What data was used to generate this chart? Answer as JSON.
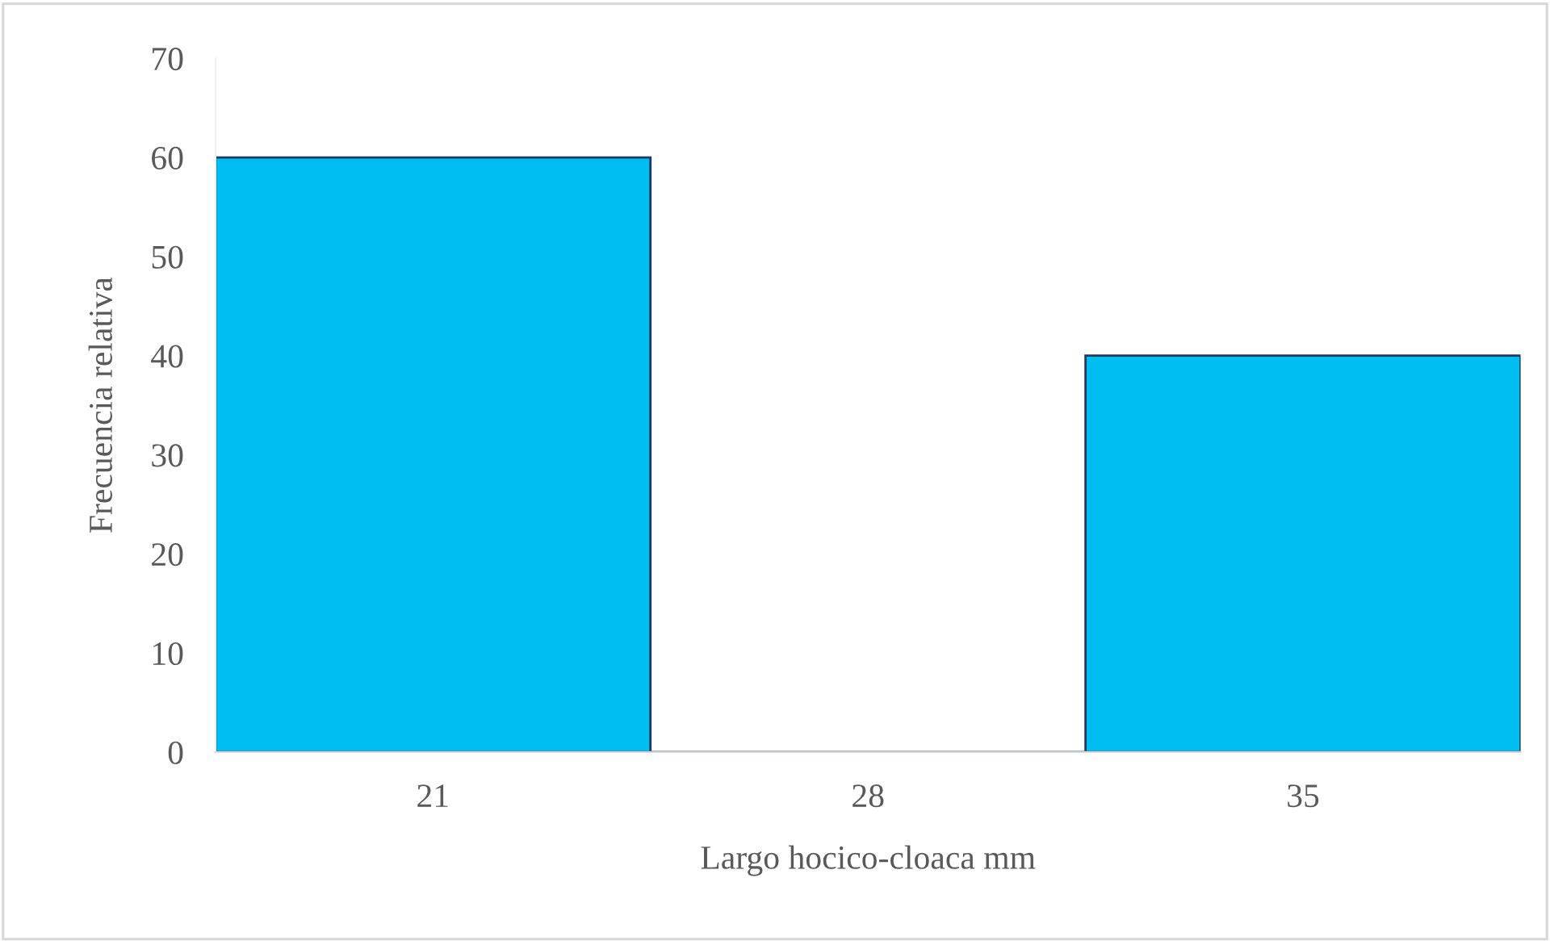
{
  "chart_data": {
    "type": "bar",
    "xlabel": "Largo hocico-cloaca mm",
    "ylabel": "Frecuencia relativa",
    "categories": [
      "21",
      "28",
      "35"
    ],
    "values": [
      60,
      0,
      40
    ],
    "color": "#00bef2",
    "ylim": [
      0,
      70
    ],
    "yticks": [
      0,
      10,
      20,
      30,
      40,
      50,
      60,
      70
    ],
    "grid": false
  }
}
